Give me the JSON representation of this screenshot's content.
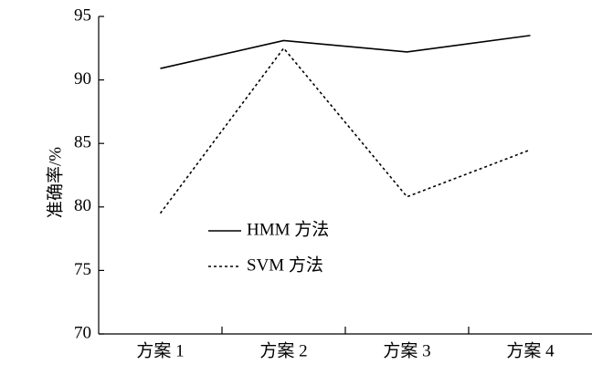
{
  "chart_data": {
    "type": "line",
    "ylabel": "准确率/%",
    "categories": [
      "方案 1",
      "方案 2",
      "方案 3",
      "方案 4"
    ],
    "series": [
      {
        "name": "HMM 方法",
        "color": "#000000",
        "style": "solid",
        "values": [
          90.9,
          93.1,
          92.2,
          93.5
        ]
      },
      {
        "name": "SVM 方法",
        "color": "#000000",
        "style": "dotted",
        "values": [
          79.5,
          92.5,
          80.8,
          84.5
        ]
      }
    ],
    "ylim": [
      70,
      95
    ],
    "yticks": [
      70,
      75,
      80,
      85,
      90,
      95
    ],
    "grid": false
  }
}
